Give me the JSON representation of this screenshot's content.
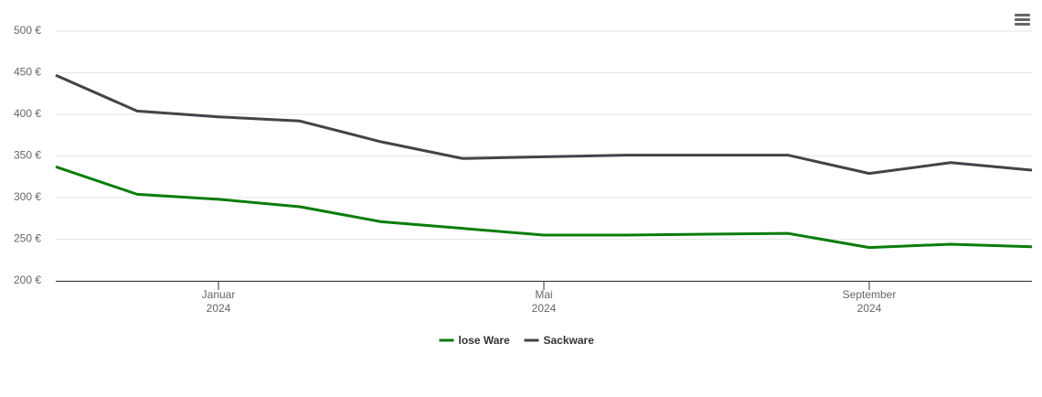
{
  "chart_data": {
    "type": "line",
    "x": [
      "2023-11",
      "2023-12",
      "2024-01",
      "2024-02",
      "2024-03",
      "2024-04",
      "2024-05",
      "2024-06",
      "2024-07",
      "2024-08",
      "2024-09",
      "2024-10",
      "2024-11"
    ],
    "xlim": [
      "2023-11",
      "2024-11"
    ],
    "xticks": [
      {
        "value": "2024-01",
        "label": "Januar 2024"
      },
      {
        "value": "2024-05",
        "label": "Mai 2024"
      },
      {
        "value": "2024-09",
        "label": "September 2024"
      }
    ],
    "ylim": [
      200,
      500
    ],
    "yticks": [
      {
        "value": 200,
        "label": "200 €"
      },
      {
        "value": 250,
        "label": "250 €"
      },
      {
        "value": 300,
        "label": "300 €"
      },
      {
        "value": 350,
        "label": "350 €"
      },
      {
        "value": 400,
        "label": "400 €"
      },
      {
        "value": 450,
        "label": "450 €"
      },
      {
        "value": 500,
        "label": "500 €"
      }
    ],
    "grid": true,
    "legend": "bottom",
    "series": [
      {
        "name": "lose Ware",
        "color": "#0a7d0a",
        "values": [
          337,
          304,
          298,
          289,
          271,
          263,
          255,
          255,
          256,
          257,
          240,
          244,
          241
        ]
      },
      {
        "name": "Sackware",
        "color": "#434348",
        "values": [
          447,
          404,
          397,
          392,
          367,
          347,
          349,
          351,
          351,
          351,
          329,
          342,
          333
        ]
      }
    ]
  }
}
